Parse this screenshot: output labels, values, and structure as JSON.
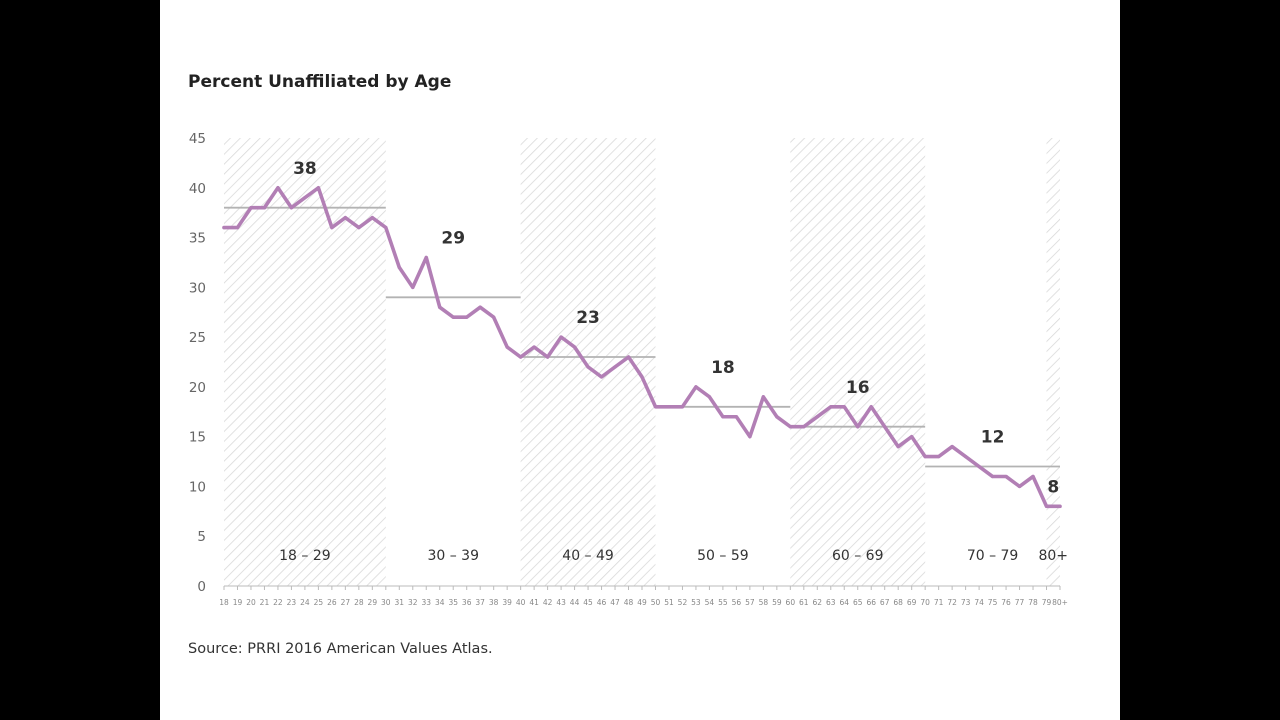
{
  "colors": {
    "line": "#b27fb5",
    "average": "#b3b3b3",
    "hatch": "#d9d9d9",
    "axis": "#bbbbbb"
  },
  "chart_data": {
    "type": "line",
    "title": "Percent Unaffiliated by Age",
    "source": "Source: PRRI 2016 American Values Atlas.",
    "xlabel": "",
    "ylabel": "",
    "ylim": [
      0,
      45
    ],
    "y_ticks": [
      0,
      5,
      10,
      15,
      20,
      25,
      30,
      35,
      40,
      45
    ],
    "grid": false,
    "categories": [
      "18",
      "19",
      "20",
      "21",
      "22",
      "23",
      "24",
      "25",
      "26",
      "27",
      "28",
      "29",
      "30",
      "31",
      "32",
      "33",
      "34",
      "35",
      "36",
      "37",
      "38",
      "39",
      "40",
      "41",
      "42",
      "43",
      "44",
      "45",
      "46",
      "47",
      "48",
      "49",
      "50",
      "51",
      "52",
      "53",
      "54",
      "55",
      "56",
      "57",
      "58",
      "59",
      "60",
      "61",
      "62",
      "63",
      "64",
      "65",
      "66",
      "67",
      "68",
      "69",
      "70",
      "71",
      "72",
      "73",
      "74",
      "75",
      "76",
      "77",
      "78",
      "79",
      "80+"
    ],
    "series": [
      {
        "values": [
          36,
          36,
          38,
          38,
          40,
          38,
          39,
          40,
          36,
          37,
          36,
          37,
          36,
          32,
          30,
          33,
          28,
          27,
          27,
          28,
          27,
          24,
          23,
          24,
          23,
          25,
          24,
          22,
          21,
          22,
          23,
          21,
          18,
          18,
          18,
          20,
          19,
          17,
          17,
          15,
          19,
          17,
          16,
          16,
          17,
          18,
          18,
          16,
          18,
          16,
          14,
          15,
          13,
          13,
          14,
          13,
          12,
          11,
          11,
          10,
          11,
          8,
          8
        ]
      }
    ],
    "age_groups": [
      {
        "label": "18 – 29",
        "start": "18",
        "end": "30",
        "average": 38,
        "shaded": true
      },
      {
        "label": "30 – 39",
        "start": "30",
        "end": "40",
        "average": 29,
        "shaded": false
      },
      {
        "label": "40 – 49",
        "start": "40",
        "end": "50",
        "average": 23,
        "shaded": true
      },
      {
        "label": "50 – 59",
        "start": "50",
        "end": "60",
        "average": 18,
        "shaded": false
      },
      {
        "label": "60 – 69",
        "start": "60",
        "end": "70",
        "average": 16,
        "shaded": true
      },
      {
        "label": "70 – 79",
        "start": "70",
        "end": "80+",
        "average": 12,
        "shaded": false
      },
      {
        "label": "80+",
        "start": "79",
        "end": "80+",
        "average": 8,
        "shaded": true
      }
    ]
  }
}
